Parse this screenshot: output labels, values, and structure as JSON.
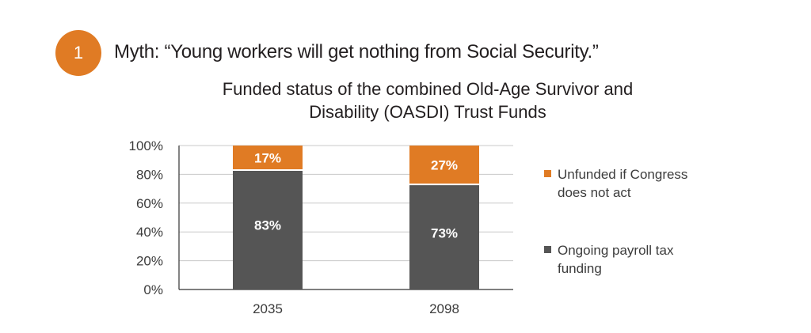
{
  "badge_number": "1",
  "myth_text": "Myth: “Young workers will get nothing from Social Security.”",
  "colors": {
    "accent": "#e07b24",
    "unfunded": "#e07b24",
    "funded": "#555555",
    "grid": "#c8c8c8",
    "axis": "#333333"
  },
  "chart_data": {
    "type": "bar",
    "stacked": true,
    "title": "Funded status of the combined Old-Age Survivor and Disability (OASDI) Trust Funds",
    "title_lines": [
      "Funded status of the combined Old-Age Survivor and",
      "Disability (OASDI) Trust Funds"
    ],
    "categories": [
      "2035",
      "2098"
    ],
    "series": [
      {
        "name": "Ongoing payroll tax funding",
        "values": [
          83,
          73
        ],
        "labels": [
          "83%",
          "73%"
        ],
        "color": "#555555"
      },
      {
        "name": "Unfunded if Congress does not act",
        "values": [
          17,
          27
        ],
        "labels": [
          "17%",
          "27%"
        ],
        "color": "#e07b24"
      }
    ],
    "y_ticks": [
      "0%",
      "20%",
      "40%",
      "60%",
      "80%",
      "100%"
    ],
    "ylim": [
      0,
      100
    ],
    "xlabel": "",
    "ylabel": "",
    "grid": true,
    "legend_position": "right",
    "legend": [
      {
        "lines": [
          "Unfunded if Congress",
          "does not act"
        ],
        "color": "#e07b24"
      },
      {
        "lines": [
          "Ongoing payroll tax",
          "funding"
        ],
        "color": "#555555"
      }
    ]
  }
}
